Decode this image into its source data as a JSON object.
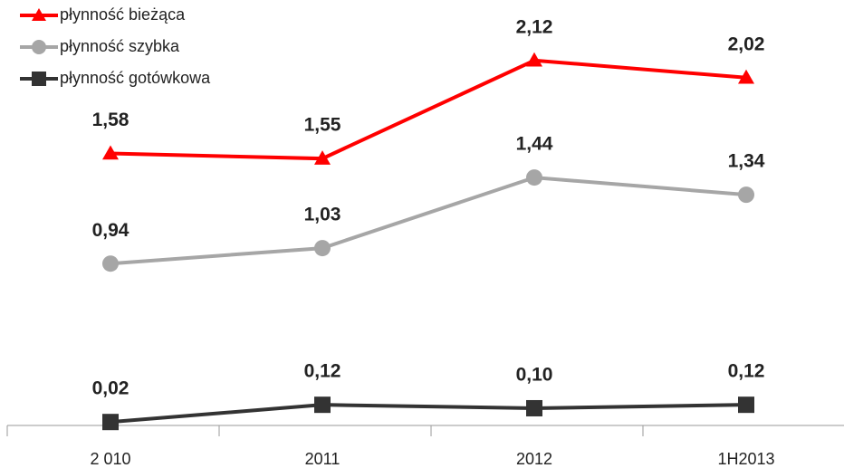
{
  "chart_data": {
    "type": "line",
    "categories": [
      "2 010",
      "2011",
      "2012",
      "1H2013"
    ],
    "ylim": [
      0,
      2.45
    ],
    "series": [
      {
        "name": "płynność bieżąca",
        "color": "#ff0000",
        "marker": "triangle",
        "values": [
          1.58,
          1.55,
          2.12,
          2.02
        ],
        "value_labels": [
          "1,58",
          "1,55",
          "2,12",
          "2,02"
        ]
      },
      {
        "name": "płynność szybka",
        "color": "#a6a6a6",
        "marker": "circle",
        "values": [
          0.94,
          1.03,
          1.44,
          1.34
        ],
        "value_labels": [
          "0,94",
          "1,03",
          "1,44",
          "1,34"
        ]
      },
      {
        "name": "płynność gotówkowa",
        "color": "#333333",
        "marker": "square",
        "values": [
          0.02,
          0.12,
          0.1,
          0.12
        ],
        "value_labels": [
          "0,02",
          "0,12",
          "0,10",
          "0,12"
        ]
      }
    ],
    "legend": "top-left"
  }
}
